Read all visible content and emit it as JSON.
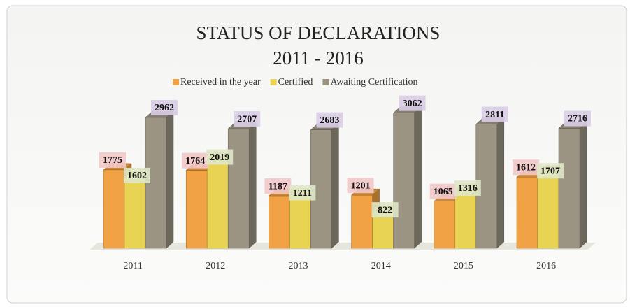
{
  "chart_data": {
    "type": "bar3d",
    "title": "STATUS OF DECLARATIONS",
    "subtitle": "2011 - 2016",
    "categories": [
      "2011",
      "2012",
      "2013",
      "2014",
      "2015",
      "2016"
    ],
    "series": [
      {
        "name": "Received in the year",
        "color": "#f0a244",
        "label_color": "#f2c6c8",
        "values": [
          1775,
          1764,
          1187,
          1201,
          1065,
          1612
        ]
      },
      {
        "name": "Certified",
        "color": "#e9d352",
        "label_color": "#dfe7c6",
        "values": [
          1602,
          2019,
          1211,
          822,
          1316,
          1707
        ]
      },
      {
        "name": "Awaiting Certification",
        "color": "#9c9483",
        "label_color": "#d9cde6",
        "values": [
          2962,
          2707,
          2683,
          3062,
          2811,
          2716
        ]
      }
    ]
  }
}
